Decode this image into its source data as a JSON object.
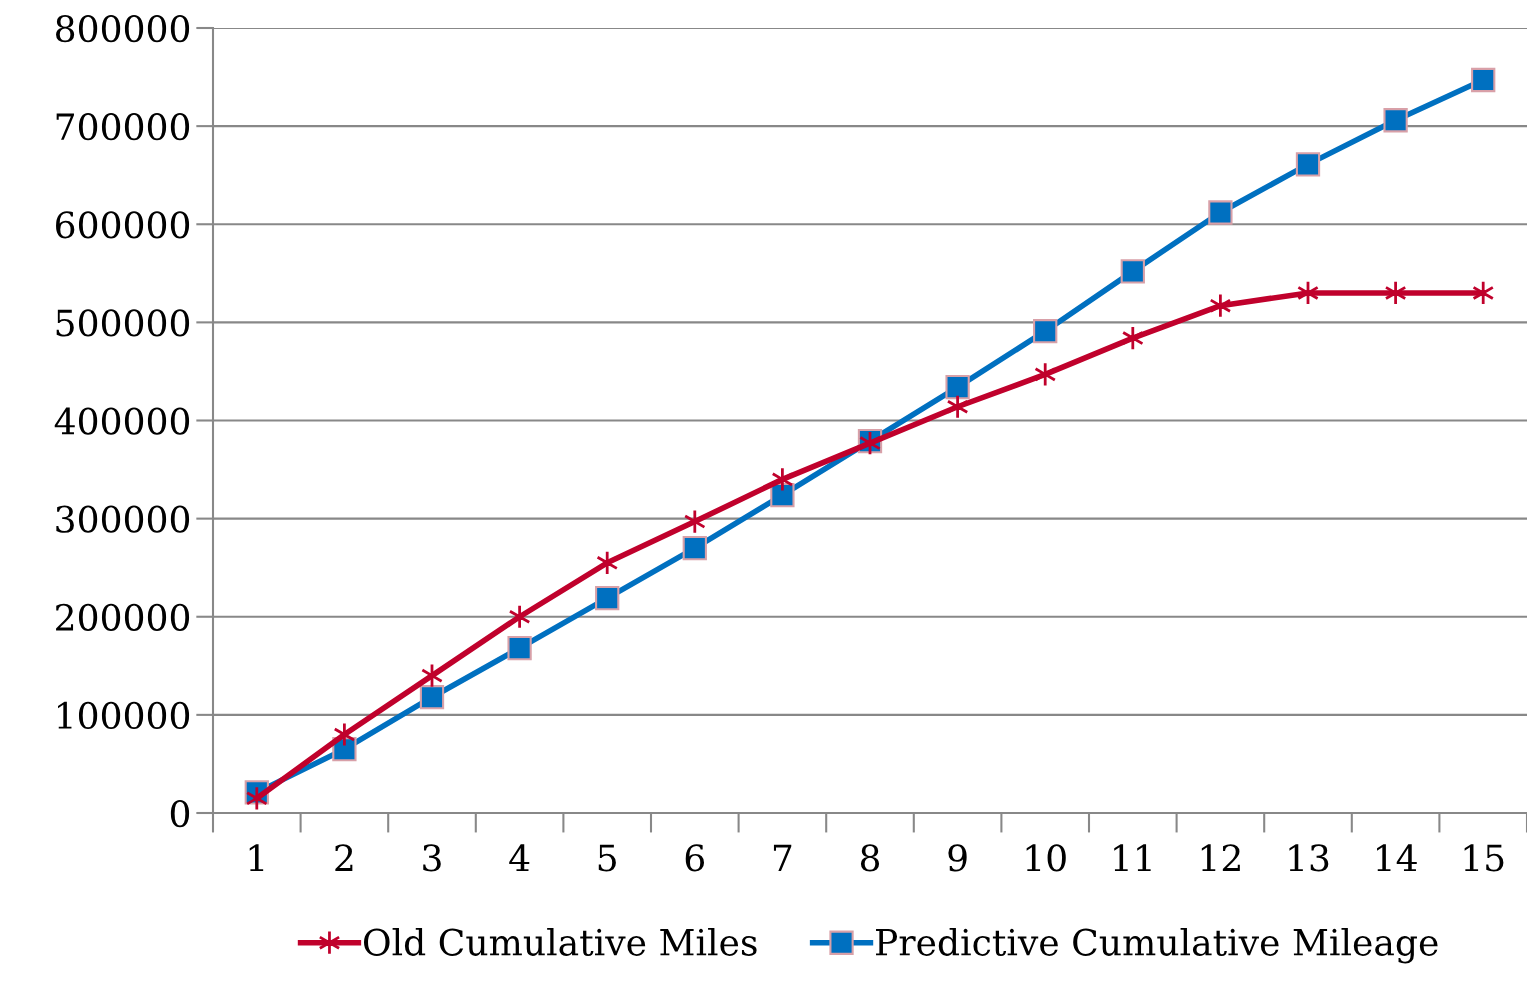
{
  "chart_data": {
    "type": "line",
    "categories": [
      "1",
      "2",
      "3",
      "4",
      "5",
      "6",
      "7",
      "8",
      "9",
      "10",
      "11",
      "12",
      "13",
      "14",
      "15"
    ],
    "series": [
      {
        "name": "Old Cumulative Miles",
        "color": "#c0012c",
        "marker": "cross",
        "values": [
          15000,
          80000,
          140000,
          200000,
          255000,
          297000,
          340000,
          377000,
          414000,
          447000,
          484000,
          517000,
          530000,
          530000,
          530000
        ]
      },
      {
        "name": "Predictive Cumulative Mileage",
        "color": "#0070c0",
        "marker": "square",
        "values": [
          21000,
          65000,
          118000,
          168000,
          219000,
          270000,
          324000,
          379000,
          434000,
          491000,
          552000,
          612000,
          661000,
          706000,
          747000
        ]
      }
    ],
    "ylim": [
      0,
      800000
    ],
    "yticks": [
      0,
      100000,
      200000,
      300000,
      400000,
      500000,
      600000,
      700000,
      800000
    ],
    "grid": "y",
    "legend": "bottom",
    "line_style": "solid"
  }
}
